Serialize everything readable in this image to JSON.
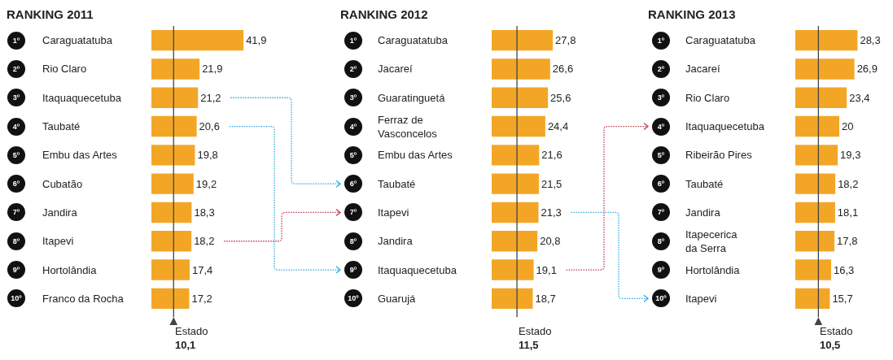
{
  "chart_data": [
    {
      "type": "bar",
      "orientation": "horizontal",
      "title": "RANKING 2011",
      "color": "#f3a626",
      "categories": [
        "Caraguatatuba",
        "Rio Claro",
        "Itaquaquecetuba",
        "Taubaté",
        "Embu das Artes",
        "Cubatão",
        "Jandira",
        "Itapevi",
        "Hortolândia",
        "Franco da Rocha"
      ],
      "values": [
        41.9,
        21.9,
        21.2,
        20.6,
        19.8,
        19.2,
        18.3,
        18.2,
        17.4,
        17.2
      ],
      "value_labels": [
        "41,9",
        "21,9",
        "21,2",
        "20,6",
        "19,8",
        "19,2",
        "18,3",
        "18,2",
        "17,4",
        "17,2"
      ],
      "ref_lines": [
        {
          "axis": "x",
          "value": 10.1,
          "label": "Estado 10,1",
          "color": "#444444"
        }
      ],
      "annotations": [
        "1º",
        "2º",
        "3º",
        "4º",
        "5º",
        "6º",
        "7º",
        "8º",
        "9º",
        "10º"
      ]
    },
    {
      "type": "bar",
      "orientation": "horizontal",
      "title": "RANKING 2012",
      "color": "#f3a626",
      "categories": [
        "Caraguatatuba",
        "Jacareí",
        "Guaratinguetá",
        "Ferraz de Vasconcelos",
        "Embu das Artes",
        "Taubaté",
        "Itapevi",
        "Jandira",
        "Itaquaquecetuba",
        "Guarujá"
      ],
      "values": [
        27.8,
        26.6,
        25.6,
        24.4,
        21.6,
        21.5,
        21.3,
        20.8,
        19.1,
        18.7
      ],
      "value_labels": [
        "27,8",
        "26,6",
        "25,6",
        "24,4",
        "21,6",
        "21,5",
        "21,3",
        "20,8",
        "19,1",
        "18,7"
      ],
      "ref_lines": [
        {
          "axis": "x",
          "value": 11.5,
          "label": "Estado 11,5",
          "color": "#444444"
        }
      ],
      "annotations": [
        "1º",
        "2º",
        "3º",
        "4º",
        "5º",
        "6º",
        "7º",
        "8º",
        "9º",
        "10º"
      ]
    },
    {
      "type": "bar",
      "orientation": "horizontal",
      "title": "RANKING 2013",
      "color": "#f3a626",
      "categories": [
        "Caraguatatuba",
        "Jacareí",
        "Rio Claro",
        "Itaquaquecetuba",
        "Ribeirão Pires",
        "Taubaté",
        "Jandira",
        "Itapecerica da Serra",
        "Hortolândia",
        "Itapevi"
      ],
      "values": [
        28.3,
        26.9,
        23.4,
        20,
        19.3,
        18.2,
        18.1,
        17.8,
        16.3,
        15.7
      ],
      "value_labels": [
        "28,3",
        "26,9",
        "23,4",
        "20",
        "19,3",
        "18,2",
        "18,1",
        "17,8",
        "16,3",
        "15,7"
      ],
      "ref_lines": [
        {
          "axis": "x",
          "value": 10.5,
          "label": "Estado 10,5",
          "color": "#444444"
        }
      ],
      "annotations": [
        "1º",
        "2º",
        "3º",
        "4º",
        "5º",
        "6º",
        "7º",
        "8º",
        "9º",
        "10º"
      ]
    }
  ]
}
